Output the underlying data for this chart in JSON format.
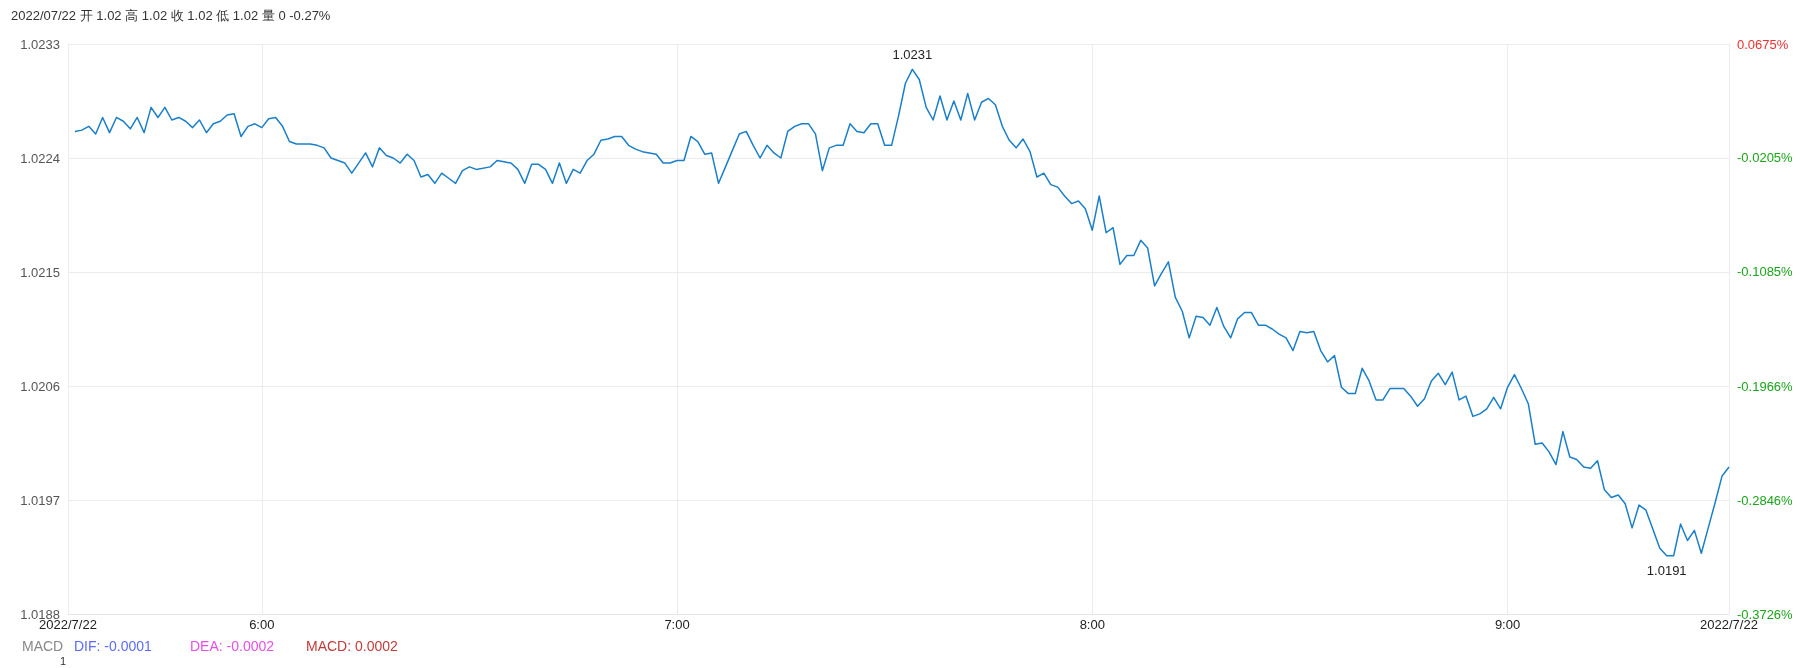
{
  "chart_data": {
    "type": "line",
    "title": "2022/07/22 开 1.02 高 1.02 收 1.02 低 1.02 量 0 -0.27%",
    "x": [
      "2022-07-22T05:33",
      "2022-07-22T05:34",
      "2022-07-22T05:35",
      "2022-07-22T05:36",
      "2022-07-22T05:37",
      "2022-07-22T05:38",
      "2022-07-22T05:39",
      "2022-07-22T05:40",
      "2022-07-22T05:41",
      "2022-07-22T05:42",
      "2022-07-22T05:43",
      "2022-07-22T05:44",
      "2022-07-22T05:45",
      "2022-07-22T05:46",
      "2022-07-22T05:47",
      "2022-07-22T05:48",
      "2022-07-22T05:49",
      "2022-07-22T05:50",
      "2022-07-22T05:51",
      "2022-07-22T05:52",
      "2022-07-22T05:53",
      "2022-07-22T05:54",
      "2022-07-22T05:55",
      "2022-07-22T05:56",
      "2022-07-22T05:57",
      "2022-07-22T05:58",
      "2022-07-22T05:59",
      "2022-07-22T06:00",
      "2022-07-22T06:01",
      "2022-07-22T06:02",
      "2022-07-22T06:03",
      "2022-07-22T06:04",
      "2022-07-22T06:05",
      "2022-07-22T06:07",
      "2022-07-22T06:08",
      "2022-07-22T06:09",
      "2022-07-22T06:10",
      "2022-07-22T06:11",
      "2022-07-22T06:12",
      "2022-07-22T06:13",
      "2022-07-22T06:14",
      "2022-07-22T06:15",
      "2022-07-22T06:16",
      "2022-07-22T06:17",
      "2022-07-22T06:18",
      "2022-07-22T06:19",
      "2022-07-22T06:20",
      "2022-07-22T06:21",
      "2022-07-22T06:22",
      "2022-07-22T06:23",
      "2022-07-22T06:24",
      "2022-07-22T06:25",
      "2022-07-22T06:26",
      "2022-07-22T06:27",
      "2022-07-22T06:28",
      "2022-07-22T06:29",
      "2022-07-22T06:30",
      "2022-07-22T06:31",
      "2022-07-22T06:33",
      "2022-07-22T06:34",
      "2022-07-22T06:35",
      "2022-07-22T06:36",
      "2022-07-22T06:37",
      "2022-07-22T06:38",
      "2022-07-22T06:39",
      "2022-07-22T06:40",
      "2022-07-22T06:41",
      "2022-07-22T06:42",
      "2022-07-22T06:43",
      "2022-07-22T06:44",
      "2022-07-22T06:45",
      "2022-07-22T06:46",
      "2022-07-22T06:47",
      "2022-07-22T06:48",
      "2022-07-22T06:49",
      "2022-07-22T06:50",
      "2022-07-22T06:51",
      "2022-07-22T06:52",
      "2022-07-22T06:53",
      "2022-07-22T06:54",
      "2022-07-22T06:55",
      "2022-07-22T06:57",
      "2022-07-22T06:58",
      "2022-07-22T06:59",
      "2022-07-22T07:00",
      "2022-07-22T07:01",
      "2022-07-22T07:02",
      "2022-07-22T07:03",
      "2022-07-22T07:04",
      "2022-07-22T07:05",
      "2022-07-22T07:06",
      "2022-07-22T07:07",
      "2022-07-22T07:08",
      "2022-07-22T07:09",
      "2022-07-22T07:10",
      "2022-07-22T07:11",
      "2022-07-22T07:12",
      "2022-07-22T07:13",
      "2022-07-22T07:14",
      "2022-07-22T07:15",
      "2022-07-22T07:16",
      "2022-07-22T07:17",
      "2022-07-22T07:18",
      "2022-07-22T07:19",
      "2022-07-22T07:20",
      "2022-07-22T07:21",
      "2022-07-22T07:22",
      "2022-07-22T07:23",
      "2022-07-22T07:24",
      "2022-07-22T07:25",
      "2022-07-22T07:26",
      "2022-07-22T07:27",
      "2022-07-22T07:28",
      "2022-07-22T07:29",
      "2022-07-22T07:30",
      "2022-07-22T07:31",
      "2022-07-22T07:32",
      "2022-07-22T07:33",
      "2022-07-22T07:34",
      "2022-07-22T07:35",
      "2022-07-22T07:36",
      "2022-07-22T07:37",
      "2022-07-22T07:38",
      "2022-07-22T07:39",
      "2022-07-22T07:40",
      "2022-07-22T07:41",
      "2022-07-22T07:42",
      "2022-07-22T07:43",
      "2022-07-22T07:44",
      "2022-07-22T07:45",
      "2022-07-22T07:46",
      "2022-07-22T07:47",
      "2022-07-22T07:48",
      "2022-07-22T07:49",
      "2022-07-22T07:50",
      "2022-07-22T07:51",
      "2022-07-22T07:52",
      "2022-07-22T07:53",
      "2022-07-22T07:54",
      "2022-07-22T07:55",
      "2022-07-22T07:56",
      "2022-07-22T07:57",
      "2022-07-22T07:58",
      "2022-07-22T07:59",
      "2022-07-22T08:00",
      "2022-07-22T08:01",
      "2022-07-22T08:02",
      "2022-07-22T08:03",
      "2022-07-22T08:04",
      "2022-07-22T08:05",
      "2022-07-22T08:06",
      "2022-07-22T08:07",
      "2022-07-22T08:08",
      "2022-07-22T08:09",
      "2022-07-22T08:10",
      "2022-07-22T08:11",
      "2022-07-22T08:12",
      "2022-07-22T08:13",
      "2022-07-22T08:14",
      "2022-07-22T08:15",
      "2022-07-22T08:16",
      "2022-07-22T08:17",
      "2022-07-22T08:18",
      "2022-07-22T08:19",
      "2022-07-22T08:20",
      "2022-07-22T08:21",
      "2022-07-22T08:22",
      "2022-07-22T08:23",
      "2022-07-22T08:24",
      "2022-07-22T08:25",
      "2022-07-22T08:26",
      "2022-07-22T08:27",
      "2022-07-22T08:28",
      "2022-07-22T08:29",
      "2022-07-22T08:30",
      "2022-07-22T08:31",
      "2022-07-22T08:32",
      "2022-07-22T08:33",
      "2022-07-22T08:34",
      "2022-07-22T08:35",
      "2022-07-22T08:36",
      "2022-07-22T08:37",
      "2022-07-22T08:38",
      "2022-07-22T08:39",
      "2022-07-22T08:40",
      "2022-07-22T08:41",
      "2022-07-22T08:42",
      "2022-07-22T08:43",
      "2022-07-22T08:45",
      "2022-07-22T08:46",
      "2022-07-22T08:47",
      "2022-07-22T08:48",
      "2022-07-22T08:49",
      "2022-07-22T08:50",
      "2022-07-22T08:51",
      "2022-07-22T08:52",
      "2022-07-22T08:53",
      "2022-07-22T08:54",
      "2022-07-22T08:55",
      "2022-07-22T08:56",
      "2022-07-22T08:57",
      "2022-07-22T08:58",
      "2022-07-22T08:59",
      "2022-07-22T09:00",
      "2022-07-22T09:01",
      "2022-07-22T09:02",
      "2022-07-22T09:03",
      "2022-07-22T09:04",
      "2022-07-22T09:05",
      "2022-07-22T09:06",
      "2022-07-22T09:07",
      "2022-07-22T09:08",
      "2022-07-22T09:09",
      "2022-07-22T09:10",
      "2022-07-22T09:11",
      "2022-07-22T09:12",
      "2022-07-22T09:13",
      "2022-07-22T09:14",
      "2022-07-22T09:15",
      "2022-07-22T09:16",
      "2022-07-22T09:17",
      "2022-07-22T09:18",
      "2022-07-22T09:19",
      "2022-07-22T09:20",
      "2022-07-22T09:21",
      "2022-07-22T09:22",
      "2022-07-22T09:23",
      "2022-07-22T09:24",
      "2022-07-22T09:25",
      "2022-07-22T09:26",
      "2022-07-22T09:27",
      "2022-07-22T09:28",
      "2022-07-22T09:29",
      "2022-07-22T09:30",
      "2022-07-22T09:31",
      "2022-07-22T09:32"
    ],
    "series": [
      {
        "color": "#1a7fc9",
        "values": [
          1.02261,
          1.02262,
          1.02265,
          1.02259,
          1.02272,
          1.0226,
          1.02272,
          1.02269,
          1.02263,
          1.02272,
          1.0226,
          1.0228,
          1.02272,
          1.0228,
          1.0227,
          1.02272,
          1.02269,
          1.02264,
          1.0227,
          1.0226,
          1.02267,
          1.02269,
          1.02274,
          1.02275,
          1.02257,
          1.02265,
          1.02267,
          1.02264,
          1.02271,
          1.02272,
          1.02265,
          1.02253,
          1.02251,
          1.02251,
          1.0225,
          1.02248,
          1.0224,
          1.02238,
          1.02236,
          1.02228,
          1.02236,
          1.02244,
          1.02233,
          1.02248,
          1.02242,
          1.0224,
          1.02236,
          1.02243,
          1.02238,
          1.02225,
          1.02227,
          1.0222,
          1.02228,
          1.02224,
          1.0222,
          1.0223,
          1.02233,
          1.02231,
          1.02233,
          1.02238,
          1.02237,
          1.02236,
          1.02231,
          1.0222,
          1.02235,
          1.02235,
          1.02231,
          1.0222,
          1.02236,
          1.0222,
          1.02231,
          1.02228,
          1.02238,
          1.02243,
          1.02254,
          1.02255,
          1.02257,
          1.02257,
          1.0225,
          1.02247,
          1.02245,
          1.02243,
          1.02236,
          1.02236,
          1.02238,
          1.02238,
          1.02257,
          1.02253,
          1.02243,
          1.02244,
          1.0222,
          1.02233,
          1.02246,
          1.02259,
          1.02261,
          1.0225,
          1.0224,
          1.0225,
          1.02244,
          1.0224,
          1.02261,
          1.02265,
          1.02267,
          1.02267,
          1.02259,
          1.0223,
          1.02248,
          1.0225,
          1.0225,
          1.02267,
          1.02261,
          1.0226,
          1.02267,
          1.02267,
          1.0225,
          1.0225,
          1.02273,
          1.02299,
          1.0231,
          1.02302,
          1.0228,
          1.0227,
          1.02289,
          1.0227,
          1.02285,
          1.0227,
          1.02291,
          1.0227,
          1.02284,
          1.02287,
          1.02282,
          1.02265,
          1.02254,
          1.02248,
          1.02255,
          1.02245,
          1.02225,
          1.02228,
          1.02219,
          1.02217,
          1.0221,
          1.02204,
          1.02206,
          1.022,
          1.02183,
          1.0221,
          1.02181,
          1.02185,
          1.02156,
          1.02163,
          1.02163,
          1.02175,
          1.02169,
          1.02139,
          1.02149,
          1.02158,
          1.0213,
          1.02119,
          1.02098,
          1.02115,
          1.02114,
          1.02108,
          1.02122,
          1.02107,
          1.02098,
          1.02113,
          1.02118,
          1.02118,
          1.02108,
          1.02108,
          1.02105,
          1.02101,
          1.02098,
          1.02088,
          1.02103,
          1.02102,
          1.02103,
          1.02088,
          1.02079,
          1.02084,
          1.02059,
          1.02054,
          1.02054,
          1.02074,
          1.02064,
          1.02049,
          1.02049,
          1.02058,
          1.02058,
          1.02052,
          1.02044,
          1.0205,
          1.02064,
          1.0207,
          1.02061,
          1.02071,
          1.02049,
          1.02052,
          1.02036,
          1.02038,
          1.02042,
          1.02051,
          1.02042,
          1.02059,
          1.02069,
          1.02058,
          1.02046,
          1.02014,
          1.02015,
          1.02008,
          1.01998,
          1.02024,
          1.02004,
          1.02002,
          1.01996,
          1.01995,
          1.02001,
          1.01978,
          1.01972,
          1.01974,
          1.01967,
          1.01948,
          1.01966,
          1.01962,
          1.01947,
          1.01932,
          1.01926,
          1.01926,
          1.01951,
          1.01938,
          1.01946,
          1.01928,
          1.01948,
          1.01968,
          1.01989,
          1.01996
        ]
      }
    ],
    "xlim": [
      "2022-07-22T05:32",
      "2022-07-22T09:32"
    ],
    "xticks": [
      {
        "value": "2022-07-22T05:32",
        "label": "2022/7/22"
      },
      {
        "value": "2022-07-22T06:00",
        "label": "6:00"
      },
      {
        "value": "2022-07-22T07:00",
        "label": "7:00"
      },
      {
        "value": "2022-07-22T08:00",
        "label": "8:00"
      },
      {
        "value": "2022-07-22T09:00",
        "label": "9:00"
      },
      {
        "value": "2022-07-22T09:32",
        "label": "2022/7/22"
      }
    ],
    "ylim": [
      1.0188,
      1.0233
    ],
    "yticks": [
      1.0188,
      1.0197,
      1.0206,
      1.0215,
      1.0224,
      1.0233
    ],
    "y2lim": [
      -0.3726,
      0.0675
    ],
    "y2ticks": [
      {
        "value": -0.3726,
        "label": "-0.3726%"
      },
      {
        "value": -0.2846,
        "label": "-0.2846%"
      },
      {
        "value": -0.1966,
        "label": "-0.1966%"
      },
      {
        "value": -0.1085,
        "label": "-0.1085%"
      },
      {
        "value": -0.0205,
        "label": "-0.0205%"
      },
      {
        "value": 0.0675,
        "label": "0.0675%"
      }
    ],
    "grid": true,
    "marker": "none",
    "line_style": "solid",
    "annotations": [
      {
        "text": "1.0231",
        "x": "2022-07-22T07:34",
        "y": 1.0231
      },
      {
        "text": "1.0191",
        "x": "2022-07-22T09:23",
        "y": 1.01926
      },
      "MACD",
      "DIF: -0.0001",
      "DEA: -0.0002",
      "MACD: 0.0002",
      "1"
    ]
  }
}
